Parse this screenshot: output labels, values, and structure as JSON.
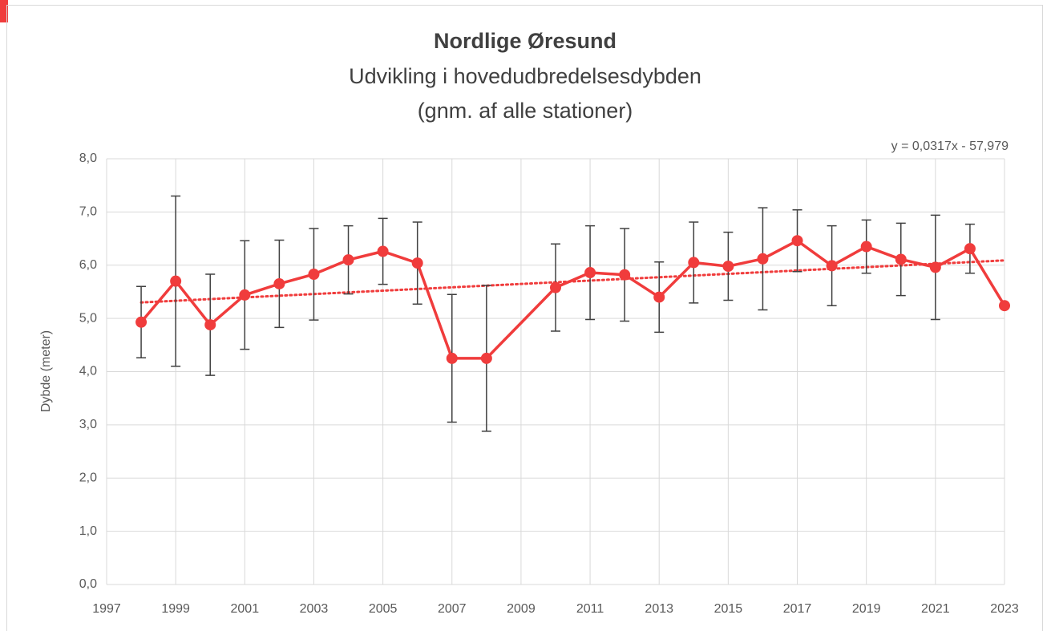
{
  "chart_data": {
    "type": "line",
    "title": "Nordlige Øresund",
    "subtitle": [
      "Udvikling i hovedudbredelsesdybden",
      "(gnm. af alle stationer)"
    ],
    "y_label": "Dybde (meter)",
    "x": [
      1998,
      1999,
      2000,
      2001,
      2002,
      2003,
      2004,
      2005,
      2006,
      2007,
      2008,
      2010,
      2011,
      2012,
      2013,
      2014,
      2015,
      2016,
      2017,
      2018,
      2019,
      2020,
      2021,
      2022,
      2023
    ],
    "series": [
      {
        "color": "#f03c3c",
        "values": [
          4.93,
          5.7,
          4.88,
          5.44,
          5.65,
          5.83,
          6.1,
          6.26,
          6.04,
          4.25,
          4.25,
          5.58,
          5.86,
          5.82,
          5.4,
          6.05,
          5.98,
          6.12,
          6.46,
          5.99,
          6.35,
          6.11,
          5.96,
          6.31,
          5.24
        ],
        "errors": [
          0.67,
          1.6,
          0.95,
          1.02,
          0.82,
          0.86,
          0.64,
          0.62,
          0.77,
          1.2,
          1.37,
          0.82,
          0.88,
          0.87,
          0.66,
          0.76,
          0.64,
          0.96,
          0.58,
          0.75,
          0.5,
          0.68,
          0.98,
          0.46,
          null
        ]
      }
    ],
    "trendline": {
      "label": "y = 0,0317x - 57,979",
      "x": [
        1998,
        2023
      ],
      "values": [
        5.3,
        6.09
      ],
      "color": "#f03c3c"
    },
    "xlim": [
      1997,
      2023
    ],
    "xticks": [
      1997,
      1999,
      2001,
      2003,
      2005,
      2007,
      2009,
      2011,
      2013,
      2015,
      2017,
      2019,
      2021,
      2023
    ],
    "ylim": [
      0,
      8
    ],
    "yticks": [
      {
        "value": 0,
        "label": "0,0"
      },
      {
        "value": 1,
        "label": "1,0"
      },
      {
        "value": 2,
        "label": "2,0"
      },
      {
        "value": 3,
        "label": "3,0"
      },
      {
        "value": 4,
        "label": "4,0"
      },
      {
        "value": 5,
        "label": "5,0"
      },
      {
        "value": 6,
        "label": "6,0"
      },
      {
        "value": 7,
        "label": "7,0"
      },
      {
        "value": 8,
        "label": "8,0"
      }
    ],
    "grid": true
  }
}
